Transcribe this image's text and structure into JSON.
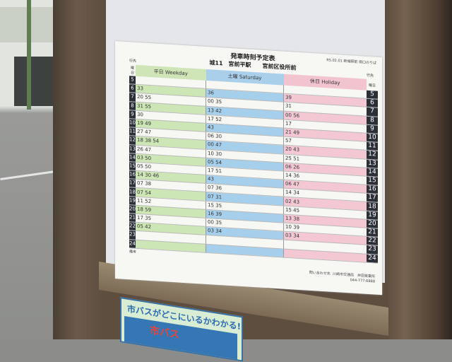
{
  "timetable": {
    "title": "発車時刻予定表",
    "stop_info": "R5.02.01 新城駅前 南口のりば",
    "route": "城11　宮前平駅　　宮前区役所前",
    "destination_label": "行先",
    "day_label": "曜日",
    "columns": {
      "weekday": "平日 Weekday",
      "saturday": "土曜 Saturday",
      "holiday": "休日 Holiday"
    },
    "rows": [
      {
        "hour": "5",
        "weekday": "",
        "saturday": "",
        "holiday": ""
      },
      {
        "hour": "6",
        "weekday": "33",
        "saturday": "36",
        "holiday": "39"
      },
      {
        "hour": "7",
        "weekday": "20 55",
        "saturday": "00 35",
        "holiday": "31"
      },
      {
        "hour": "8",
        "weekday": "31 55",
        "saturday": "13 42",
        "holiday": "00 56"
      },
      {
        "hour": "9",
        "weekday": "30",
        "saturday": "17 52",
        "holiday": "17"
      },
      {
        "hour": "10",
        "weekday": "19 49",
        "saturday": "43",
        "holiday": "21 49"
      },
      {
        "hour": "11",
        "weekday": "27 47",
        "saturday": "06 30",
        "holiday": "57"
      },
      {
        "hour": "12",
        "weekday": "18 38 54",
        "saturday": "00 47",
        "holiday": "20 43"
      },
      {
        "hour": "13",
        "weekday": "26 47",
        "saturday": "10 30",
        "holiday": "25 51"
      },
      {
        "hour": "14",
        "weekday": "03 50",
        "saturday": "05 54",
        "holiday": "06 26"
      },
      {
        "hour": "15",
        "weekday": "05 50",
        "saturday": "17 51",
        "holiday": "14 36"
      },
      {
        "hour": "16",
        "weekday": "14 30 46",
        "saturday": "43",
        "holiday": "06 47"
      },
      {
        "hour": "17",
        "weekday": "07 38",
        "saturday": "07 36",
        "holiday": "14 34"
      },
      {
        "hour": "18",
        "weekday": "07 54",
        "saturday": "07 31",
        "holiday": "02 43"
      },
      {
        "hour": "19",
        "weekday": "11 52",
        "saturday": "15 35",
        "holiday": "15 45"
      },
      {
        "hour": "20",
        "weekday": "18 59",
        "saturday": "16 39",
        "holiday": "13 38"
      },
      {
        "hour": "21",
        "weekday": "17 35",
        "saturday": "00 35",
        "holiday": "10 39"
      },
      {
        "hour": "22",
        "weekday": "05 42",
        "saturday": "03 34",
        "holiday": "03 34"
      },
      {
        "hour": "23",
        "weekday": "",
        "saturday": "",
        "holiday": ""
      },
      {
        "hour": "24",
        "weekday": "",
        "saturday": "",
        "holiday": ""
      }
    ],
    "notes_label": "備考",
    "footer": {
      "contact": "問い合わせ先",
      "operator": "川崎市交通局　井田営業所",
      "phone": "044-777-6888"
    }
  },
  "sign": {
    "headline": "市バスがどこにいるかわかる!",
    "logo_text": "市バス"
  },
  "colors": {
    "weekday": "#cde6b5",
    "saturday": "#a6cfec",
    "holiday": "#f4c8d2",
    "hour_cell": "#2b2f36",
    "frame": "#6b5a4a"
  }
}
